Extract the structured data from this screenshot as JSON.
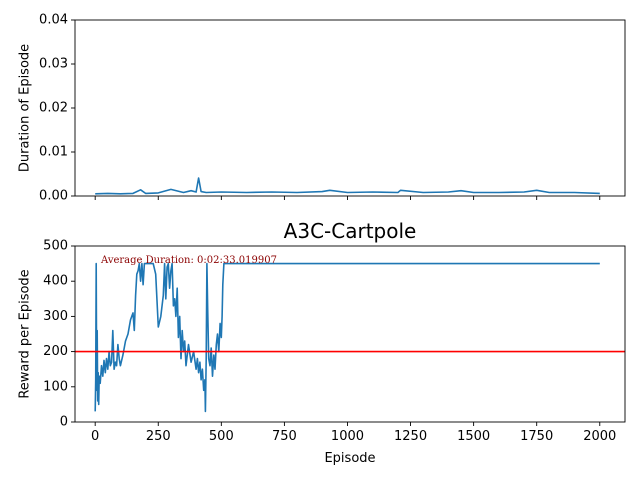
{
  "chart_data": [
    {
      "type": "line",
      "title": "",
      "xlabel": "",
      "ylabel": "Duration of Episode",
      "xlim": [
        -80,
        2100
      ],
      "ylim": [
        0,
        0.04
      ],
      "x_ticks": [
        0,
        250,
        500,
        750,
        1000,
        1250,
        1500,
        1750,
        2000
      ],
      "x_tick_labels_visible": false,
      "y_ticks": [
        0.0,
        0.01,
        0.02,
        0.03,
        0.04
      ],
      "y_tick_labels": [
        "0.00",
        "0.01",
        "0.02",
        "0.03",
        "0.04"
      ],
      "grid": false,
      "series": [
        {
          "color": "#1f77b4",
          "x": [
            0,
            50,
            100,
            150,
            180,
            200,
            250,
            300,
            350,
            380,
            400,
            410,
            420,
            440,
            500,
            600,
            700,
            800,
            900,
            930,
            1000,
            1100,
            1200,
            1210,
            1300,
            1400,
            1450,
            1500,
            1600,
            1700,
            1750,
            1800,
            1900,
            2000
          ],
          "y": [
            0.0005,
            0.0006,
            0.0005,
            0.0006,
            0.0014,
            0.0006,
            0.0007,
            0.0015,
            0.0008,
            0.0012,
            0.0009,
            0.0041,
            0.001,
            0.0008,
            0.0009,
            0.0008,
            0.0009,
            0.0008,
            0.001,
            0.0013,
            0.0008,
            0.0009,
            0.0008,
            0.0013,
            0.0008,
            0.0009,
            0.0012,
            0.0008,
            0.0008,
            0.0009,
            0.0013,
            0.0008,
            0.0008,
            0.0006
          ]
        }
      ]
    },
    {
      "type": "line",
      "title": "A3C-Cartpole",
      "xlabel": "Episode",
      "ylabel": "Reward per Episode",
      "xlim": [
        -80,
        2100
      ],
      "ylim": [
        0,
        500
      ],
      "x_ticks": [
        0,
        250,
        500,
        750,
        1000,
        1250,
        1500,
        1750,
        2000
      ],
      "x_tick_labels": [
        "0",
        "250",
        "500",
        "750",
        "1000",
        "1250",
        "1500",
        "1750",
        "2000"
      ],
      "y_ticks": [
        0,
        100,
        200,
        300,
        400,
        500
      ],
      "y_tick_labels": [
        "0",
        "100",
        "200",
        "300",
        "400",
        "500"
      ],
      "grid": false,
      "annotation": "Average Duration: 0:02:33.019907",
      "reference_line": {
        "y": 200,
        "color": "#ff0000"
      },
      "series": [
        {
          "color": "#1f77b4",
          "x": [
            0,
            2,
            4,
            6,
            8,
            10,
            12,
            14,
            16,
            20,
            25,
            30,
            35,
            40,
            45,
            50,
            55,
            60,
            65,
            70,
            75,
            80,
            85,
            90,
            95,
            100,
            110,
            120,
            130,
            140,
            150,
            155,
            160,
            165,
            170,
            175,
            180,
            185,
            190,
            195,
            200,
            210,
            220,
            230,
            240,
            250,
            260,
            270,
            275,
            280,
            285,
            290,
            295,
            300,
            305,
            310,
            315,
            320,
            325,
            330,
            335,
            340,
            345,
            350,
            355,
            360,
            370,
            380,
            390,
            400,
            405,
            410,
            415,
            420,
            425,
            430,
            435,
            437,
            440,
            443,
            446,
            450,
            455,
            460,
            465,
            470,
            475,
            480,
            485,
            490,
            495,
            500,
            503,
            506,
            510,
            520,
            600,
            800,
            1000,
            1500,
            2000
          ],
          "y": [
            30,
            120,
            450,
            90,
            260,
            60,
            140,
            50,
            130,
            110,
            160,
            130,
            175,
            140,
            180,
            150,
            200,
            160,
            170,
            260,
            150,
            170,
            160,
            220,
            180,
            160,
            190,
            230,
            250,
            290,
            310,
            260,
            360,
            420,
            430,
            450,
            400,
            450,
            390,
            450,
            450,
            450,
            450,
            450,
            420,
            270,
            300,
            360,
            450,
            350,
            440,
            450,
            380,
            430,
            450,
            330,
            350,
            300,
            380,
            240,
            300,
            180,
            260,
            200,
            230,
            160,
            220,
            170,
            200,
            150,
            180,
            140,
            170,
            120,
            150,
            90,
            120,
            30,
            180,
            450,
            320,
            180,
            160,
            210,
            130,
            190,
            150,
            220,
            250,
            200,
            280,
            240,
            300,
            390,
            450,
            450,
            450,
            450,
            450,
            450,
            450
          ]
        }
      ]
    }
  ]
}
